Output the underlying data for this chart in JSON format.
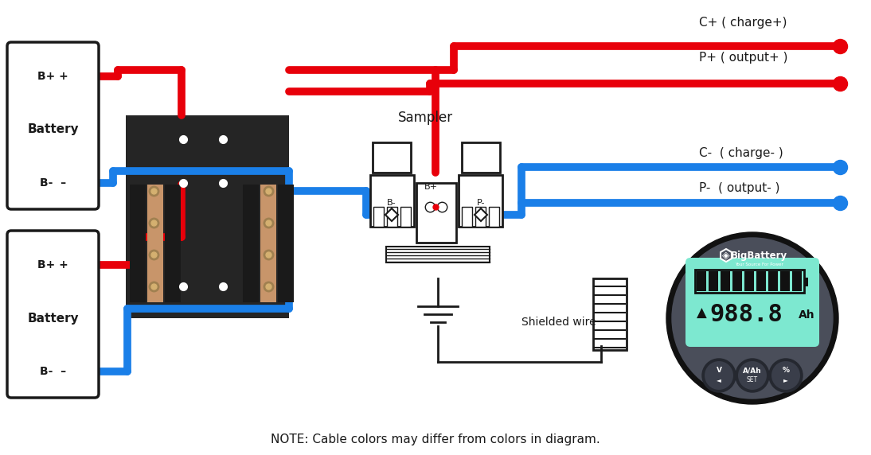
{
  "bg_color": "#ffffff",
  "red": "#e8000a",
  "blue": "#1a7fe8",
  "black": "#1a1a1a",
  "teal": "#7de8d0",
  "meter_outer": "#111111",
  "meter_face": "#4a4e5a",
  "meter_btn": "#3a3e4a",
  "label_C_charge_pos": "C+ ( charge+)",
  "label_P_output_pos": "P+ ( output+ )",
  "label_C_charge_neg": "C-  ( charge- )",
  "label_P_output_neg": "P-  ( output- )",
  "label_sampler": "Sampler",
  "label_shielded": "Shielded wire",
  "label_note": "NOTE: Cable colors may differ from colors in diagram.",
  "bat1_labels": [
    "B+ +",
    "Battery",
    "B-  –"
  ],
  "bat2_labels": [
    "B+ +",
    "Battery",
    "B-  –"
  ],
  "lw": 7
}
